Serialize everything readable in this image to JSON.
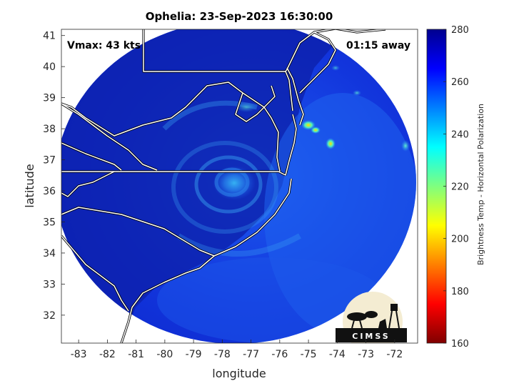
{
  "title": "Ophelia: 23-Sep-2023 16:30:00",
  "vmax_label": "Vmax: 43 kts",
  "away_label": "01:15 away",
  "chart_data": {
    "type": "heatmap",
    "title": "Ophelia: 23-Sep-2023 16:30:00",
    "xlabel": "longitude",
    "ylabel": "latitude",
    "xlim": [
      -83.6,
      -71.2
    ],
    "ylim": [
      31.1,
      41.2
    ],
    "x_ticks": [
      -83,
      -82,
      -81,
      -80,
      -79,
      -78,
      -77,
      -76,
      -75,
      -74,
      -73,
      -72
    ],
    "y_ticks": [
      32,
      33,
      34,
      35,
      36,
      37,
      38,
      39,
      40,
      41
    ],
    "storm_center": {
      "lon": -77.1,
      "lat": 36.2
    },
    "swath_center": {
      "lon": -77.5,
      "lat": 36.0
    },
    "colorbar": {
      "label": "Brightness Temp - Horizontal Polarization",
      "min": 160,
      "max": 280,
      "ticks": [
        160,
        180,
        200,
        220,
        240,
        260,
        280
      ],
      "colormap": "jet"
    },
    "cold_spots": [
      {
        "lon": -74.9,
        "lat": 38.0,
        "value": 205
      },
      {
        "lon": -74.7,
        "lat": 37.9,
        "value": 215
      },
      {
        "lon": -74.1,
        "lat": 37.4,
        "value": 225
      },
      {
        "lon": -71.7,
        "lat": 37.3,
        "value": 230
      }
    ]
  },
  "logo": {
    "text": "CIMSS"
  }
}
